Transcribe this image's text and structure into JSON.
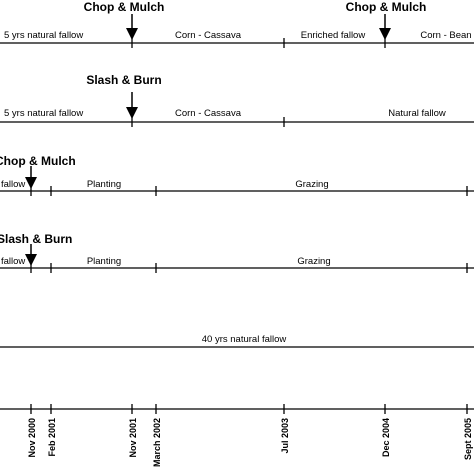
{
  "timelines": [
    {
      "events": [
        "Chop & Mulch",
        "Chop & Mulch"
      ],
      "segments": [
        "5 yrs natural fallow",
        "Corn - Cassava",
        "Enriched fallow",
        "Corn - Bean"
      ]
    },
    {
      "events": [
        "Slash & Burn"
      ],
      "segments": [
        "5 yrs natural fallow",
        "Corn - Cassava",
        "Natural fallow"
      ]
    },
    {
      "events": [
        "Chop & Mulch"
      ],
      "segments": [
        "fallow",
        "Planting",
        "Grazing"
      ]
    },
    {
      "events": [
        "Slash & Burn"
      ],
      "segments": [
        "fallow",
        "Planting",
        "Grazing"
      ]
    },
    {
      "events": [],
      "segments": [
        "40 yrs natural fallow"
      ]
    }
  ],
  "axis": {
    "dates": [
      "Nov 2000",
      "Feb 2001",
      "Nov 2001",
      "March 2002",
      "Jul 2003",
      "Dec 2004",
      "Sept 2005"
    ]
  }
}
